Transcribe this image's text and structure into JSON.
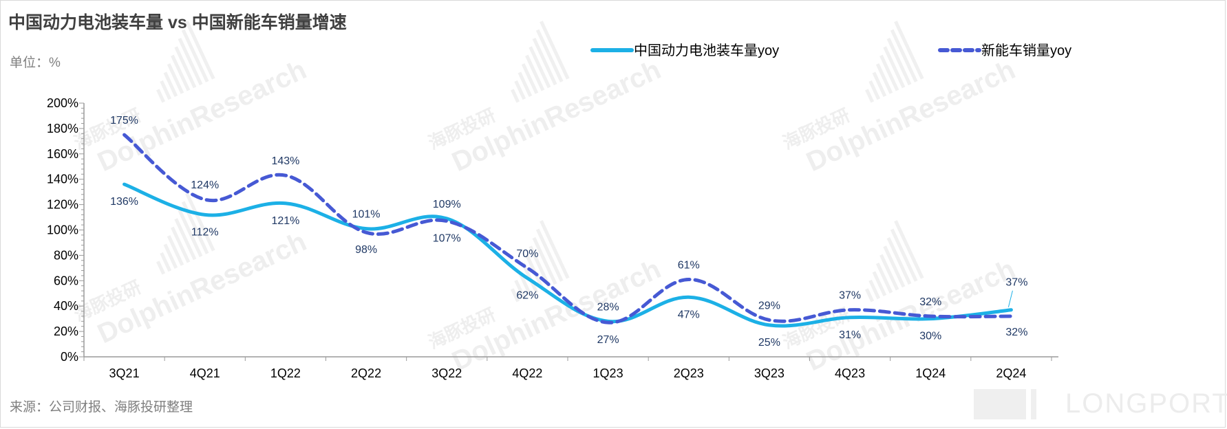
{
  "title": "中国动力电池装车量 vs 中国新能车销量增速",
  "unit": "单位：%",
  "source": "来源：公司财报、海豚投研整理",
  "watermark": {
    "brand": "DolphinResearch",
    "brand_cn": "海豚投研",
    "corner_logo": "LONGPORT"
  },
  "chart_data": {
    "type": "line",
    "categories": [
      "3Q21",
      "4Q21",
      "1Q22",
      "2Q22",
      "3Q22",
      "4Q22",
      "1Q23",
      "2Q23",
      "3Q23",
      "4Q23",
      "1Q24",
      "2Q24"
    ],
    "ylim": [
      0,
      200
    ],
    "yticks": [
      0,
      20,
      40,
      60,
      80,
      100,
      120,
      140,
      160,
      180,
      200
    ],
    "ytick_labels": [
      "0%",
      "20%",
      "40%",
      "60%",
      "80%",
      "100%",
      "120%",
      "140%",
      "160%",
      "180%",
      "200%"
    ],
    "grid": false,
    "legend": "top",
    "series": [
      {
        "name": "中国动力电池装车量yoy",
        "color": "#1cb0e6",
        "style": "solid",
        "values": [
          136,
          112,
          121,
          101,
          109,
          62,
          28,
          47,
          25,
          31,
          30,
          37
        ],
        "labels": [
          "136%",
          "112%",
          "121%",
          "101%",
          "109%",
          "62%",
          "28%",
          "47%",
          "25%",
          "31%",
          "30%",
          "37%"
        ]
      },
      {
        "name": "新能车销量yoy",
        "color": "#4659d4",
        "style": "dashed",
        "values": [
          175,
          124,
          143,
          98,
          107,
          70,
          27,
          61,
          29,
          37,
          32,
          32
        ],
        "labels": [
          "175%",
          "124%",
          "143%",
          "98%",
          "107%",
          "70%",
          "27%",
          "61%",
          "29%",
          "37%",
          "32%",
          "32%"
        ]
      }
    ]
  }
}
